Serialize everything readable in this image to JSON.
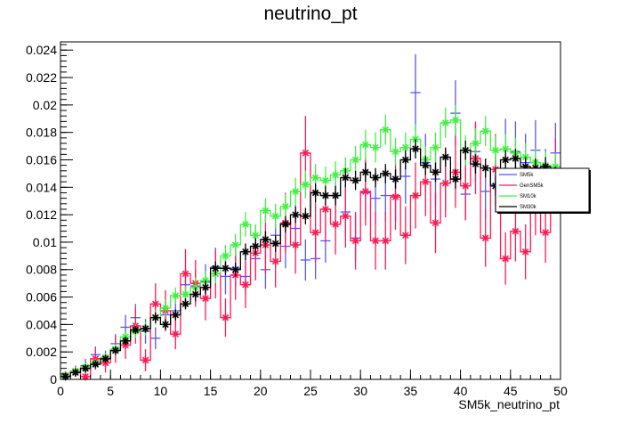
{
  "chart_data": {
    "type": "scatter",
    "title": "neutrino_pt",
    "xlabel": "SM5k_neutrino_pt",
    "ylabel": "",
    "xlim": [
      0,
      50
    ],
    "ylim": [
      0,
      0.0246
    ],
    "grid": false,
    "legend_position": "right",
    "x_ticks": [
      0,
      5,
      10,
      15,
      20,
      25,
      30,
      35,
      40,
      45,
      50
    ],
    "x_tick_labels": [
      "0",
      "5",
      "10",
      "15",
      "20",
      "25",
      "30",
      "35",
      "40",
      "45",
      "50"
    ],
    "y_ticks": [
      0,
      0.002,
      0.004,
      0.006,
      0.008,
      0.01,
      0.012,
      0.014,
      0.016,
      0.018,
      0.02,
      0.022,
      0.024
    ],
    "y_tick_labels": [
      "0",
      "0.002",
      "0.004",
      "0.006",
      "0.008",
      "0.01",
      "0.012",
      "0.014",
      "0.016",
      "0.018",
      "0.02",
      "0.022",
      "0.024"
    ],
    "bin_width": 1,
    "series": [
      {
        "name": "SM5k",
        "color": "#5555ff",
        "style": "errorbar",
        "x": [
          0.5,
          1.5,
          2.5,
          3.5,
          4.5,
          5.5,
          6.5,
          7.5,
          8.5,
          9.5,
          10.5,
          11.5,
          12.5,
          13.5,
          14.5,
          15.5,
          16.5,
          17.5,
          18.5,
          19.5,
          20.5,
          21.5,
          22.5,
          23.5,
          24.5,
          25.5,
          26.5,
          27.5,
          28.5,
          29.5,
          30.5,
          31.5,
          32.5,
          33.5,
          34.5,
          35.5,
          36.5,
          37.5,
          38.5,
          39.5,
          40.5,
          41.5,
          42.5,
          43.5,
          44.5,
          45.5,
          46.5,
          47.5,
          48.5,
          49.5
        ],
        "values": [
          0.0002,
          0.0005,
          0.001,
          0.0018,
          0.0015,
          0.0026,
          0.0038,
          0.0045,
          0.0035,
          0.003,
          0.0047,
          0.005,
          0.0069,
          0.0068,
          0.0071,
          0.0082,
          0.0075,
          0.0081,
          0.0075,
          0.0088,
          0.008,
          0.0105,
          0.0097,
          0.011,
          0.0087,
          0.0088,
          0.0101,
          0.0134,
          0.0122,
          0.0103,
          0.0136,
          0.0132,
          0.0134,
          0.0134,
          0.0148,
          0.0209,
          0.0158,
          0.0146,
          0.0143,
          0.0194,
          0.0135,
          0.0166,
          0.0137,
          0.0142,
          0.0168,
          0.0166,
          0.0158,
          0.0167,
          0.0147,
          0.0165
        ],
        "errors": [
          0.0002,
          0.0003,
          0.0005,
          0.0006,
          0.0006,
          0.0007,
          0.0009,
          0.001,
          0.0009,
          0.0008,
          0.001,
          0.0011,
          0.0012,
          0.0012,
          0.0013,
          0.0014,
          0.0013,
          0.0014,
          0.0013,
          0.0015,
          0.0014,
          0.0016,
          0.0016,
          0.0017,
          0.0015,
          0.0015,
          0.0016,
          0.0019,
          0.0018,
          0.0017,
          0.0019,
          0.0019,
          0.0019,
          0.0019,
          0.002,
          0.0028,
          0.0021,
          0.002,
          0.002,
          0.0024,
          0.0019,
          0.0022,
          0.002,
          0.002,
          0.0022,
          0.0022,
          0.0021,
          0.0022,
          0.0021,
          0.0022
        ]
      },
      {
        "name": "GenSM5k",
        "color": "#ff1a55",
        "style": "step-errorbar",
        "x": [
          0.5,
          1.5,
          2.5,
          3.5,
          4.5,
          5.5,
          6.5,
          7.5,
          8.5,
          9.5,
          10.5,
          11.5,
          12.5,
          13.5,
          14.5,
          15.5,
          16.5,
          17.5,
          18.5,
          19.5,
          20.5,
          21.5,
          22.5,
          23.5,
          24.5,
          25.5,
          26.5,
          27.5,
          28.5,
          29.5,
          30.5,
          31.5,
          32.5,
          33.5,
          34.5,
          35.5,
          36.5,
          37.5,
          38.5,
          39.5,
          40.5,
          41.5,
          42.5,
          43.5,
          44.5,
          45.5,
          46.5,
          47.5,
          48.5,
          49.5
        ],
        "values": [
          0.0003,
          0.0006,
          0.0002,
          0.0015,
          0.0012,
          0.0022,
          0.0025,
          0.0039,
          0.0014,
          0.0055,
          0.005,
          0.0033,
          0.0077,
          0.007,
          0.0059,
          0.0077,
          0.0045,
          0.0076,
          0.0069,
          0.0092,
          0.0098,
          0.0086,
          0.0114,
          0.0098,
          0.0165,
          0.0107,
          0.0124,
          0.0113,
          0.0119,
          0.0101,
          0.0137,
          0.0101,
          0.0101,
          0.0133,
          0.0105,
          0.0134,
          0.0144,
          0.0114,
          0.0143,
          0.0151,
          0.0141,
          0.0161,
          0.0103,
          0.0153,
          0.0088,
          0.0108,
          0.0093,
          0.0129,
          0.0107,
          0.015
        ],
        "errors": [
          0.0003,
          0.0004,
          0.0002,
          0.0008,
          0.0007,
          0.001,
          0.001,
          0.0013,
          0.0008,
          0.0015,
          0.0015,
          0.0011,
          0.0018,
          0.0017,
          0.0016,
          0.0018,
          0.0014,
          0.0018,
          0.0017,
          0.002,
          0.0021,
          0.0019,
          0.0022,
          0.0021,
          0.0027,
          0.0022,
          0.0024,
          0.0022,
          0.0023,
          0.0021,
          0.0025,
          0.0021,
          0.0021,
          0.0024,
          0.0021,
          0.0024,
          0.0025,
          0.0022,
          0.0025,
          0.0026,
          0.0025,
          0.0026,
          0.0021,
          0.0026,
          0.0019,
          0.0022,
          0.002,
          0.0024,
          0.0022,
          0.0026
        ]
      },
      {
        "name": "SM10k",
        "color": "#44ee44",
        "style": "step-errorbar",
        "x": [
          0.5,
          1.5,
          2.5,
          3.5,
          4.5,
          5.5,
          6.5,
          7.5,
          8.5,
          9.5,
          10.5,
          11.5,
          12.5,
          13.5,
          14.5,
          15.5,
          16.5,
          17.5,
          18.5,
          19.5,
          20.5,
          21.5,
          22.5,
          23.5,
          24.5,
          25.5,
          26.5,
          27.5,
          28.5,
          29.5,
          30.5,
          31.5,
          32.5,
          33.5,
          34.5,
          35.5,
          36.5,
          37.5,
          38.5,
          39.5,
          40.5,
          41.5,
          42.5,
          43.5,
          44.5,
          45.5,
          46.5,
          47.5,
          48.5,
          49.5
        ],
        "values": [
          0.0003,
          0.0006,
          0.0009,
          0.0012,
          0.0016,
          0.0022,
          0.0031,
          0.0035,
          0.0037,
          0.0045,
          0.0052,
          0.0061,
          0.0062,
          0.0067,
          0.0072,
          0.0077,
          0.009,
          0.0098,
          0.0113,
          0.0105,
          0.0123,
          0.0119,
          0.0126,
          0.0137,
          0.0142,
          0.0147,
          0.0145,
          0.0149,
          0.0152,
          0.016,
          0.0171,
          0.0169,
          0.0182,
          0.0166,
          0.0169,
          0.0175,
          0.016,
          0.0169,
          0.0187,
          0.0189,
          0.0167,
          0.0172,
          0.0181,
          0.0167,
          0.0168,
          0.0165,
          0.0162,
          0.0158,
          0.0156,
          0.0155
        ],
        "errors": [
          0.0001,
          0.0002,
          0.0002,
          0.0003,
          0.0003,
          0.0004,
          0.0004,
          0.0005,
          0.0005,
          0.0005,
          0.0006,
          0.0006,
          0.0006,
          0.0007,
          0.0007,
          0.0007,
          0.0008,
          0.0008,
          0.0009,
          0.0008,
          0.0009,
          0.0009,
          0.0009,
          0.001,
          0.001,
          0.001,
          0.001,
          0.001,
          0.001,
          0.001,
          0.0011,
          0.0011,
          0.0011,
          0.001,
          0.0011,
          0.0011,
          0.001,
          0.0011,
          0.0011,
          0.0011,
          0.0011,
          0.0011,
          0.0011,
          0.0011,
          0.0011,
          0.0011,
          0.001,
          0.001,
          0.001,
          0.001
        ]
      },
      {
        "name": "SM30k",
        "color": "#000000",
        "style": "step-errorbar",
        "x": [
          0.5,
          1.5,
          2.5,
          3.5,
          4.5,
          5.5,
          6.5,
          7.5,
          8.5,
          9.5,
          10.5,
          11.5,
          12.5,
          13.5,
          14.5,
          15.5,
          16.5,
          17.5,
          18.5,
          19.5,
          20.5,
          21.5,
          22.5,
          23.5,
          24.5,
          25.5,
          26.5,
          27.5,
          28.5,
          29.5,
          30.5,
          31.5,
          32.5,
          33.5,
          34.5,
          35.5,
          36.5,
          37.5,
          38.5,
          39.5,
          40.5,
          41.5,
          42.5,
          43.5,
          44.5,
          45.5,
          46.5,
          47.5,
          48.5,
          49.5
        ],
        "values": [
          0.0002,
          0.0005,
          0.0008,
          0.0011,
          0.0015,
          0.0021,
          0.0028,
          0.0036,
          0.0037,
          0.0045,
          0.004,
          0.0047,
          0.0055,
          0.0062,
          0.0067,
          0.0081,
          0.0081,
          0.008,
          0.0093,
          0.0097,
          0.0102,
          0.0099,
          0.0113,
          0.012,
          0.0119,
          0.0136,
          0.0134,
          0.0134,
          0.0147,
          0.0145,
          0.0151,
          0.0147,
          0.015,
          0.0146,
          0.016,
          0.0168,
          0.0156,
          0.0151,
          0.0162,
          0.0146,
          0.0167,
          0.0157,
          0.0154,
          0.0141,
          0.016,
          0.0161,
          0.0155,
          0.0154,
          0.0155,
          0.0148
        ],
        "errors": [
          0.0001,
          0.0001,
          0.0002,
          0.0002,
          0.0002,
          0.0003,
          0.0003,
          0.0003,
          0.0003,
          0.0004,
          0.0004,
          0.0004,
          0.0004,
          0.0005,
          0.0005,
          0.0005,
          0.0005,
          0.0005,
          0.0006,
          0.0006,
          0.0006,
          0.0006,
          0.0006,
          0.0006,
          0.0006,
          0.0007,
          0.0007,
          0.0007,
          0.0007,
          0.0007,
          0.0007,
          0.0007,
          0.0007,
          0.0007,
          0.0007,
          0.0007,
          0.0007,
          0.0007,
          0.0007,
          0.0007,
          0.0007,
          0.0007,
          0.0007,
          0.0007,
          0.0007,
          0.0007,
          0.0007,
          0.0007,
          0.0007,
          0.0007
        ]
      }
    ]
  }
}
